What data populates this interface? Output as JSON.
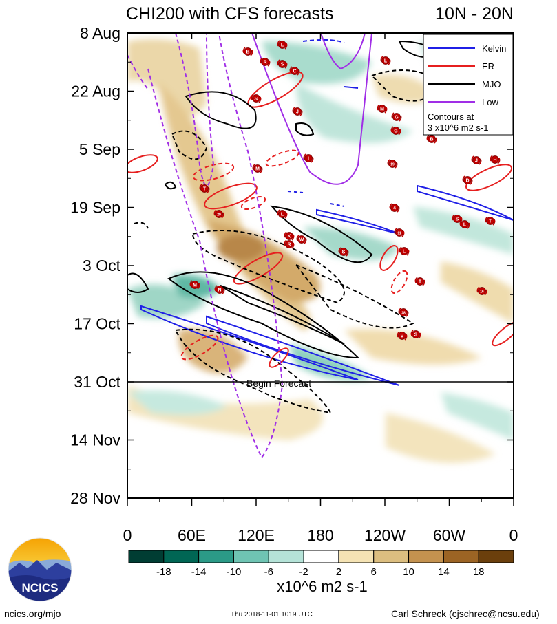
{
  "title_left": "CHI200 with CFS forecasts",
  "title_right": "10N - 20N",
  "y_axis": {
    "ticks": [
      "8 Aug",
      "22 Aug",
      "5 Sep",
      "19 Sep",
      "3 Oct",
      "17 Oct",
      "31 Oct",
      "14 Nov",
      "28 Nov"
    ]
  },
  "x_axis": {
    "ticks": [
      "0",
      "60E",
      "120E",
      "180",
      "120W",
      "60W",
      "0"
    ]
  },
  "forecast_label": "Begin Forecast",
  "legend": {
    "items": [
      {
        "label": "Kelvin",
        "color": "#1f1fe6"
      },
      {
        "label": "ER",
        "color": "#e61f1f"
      },
      {
        "label": "MJO",
        "color": "#000000"
      },
      {
        "label": "Low",
        "color": "#a02ee6"
      }
    ],
    "note_line1": "Contours at",
    "note_line2": "3 x10^6 m2 s-1"
  },
  "colorbar": {
    "labels": [
      "-18",
      "-14",
      "-10",
      "-6",
      "-2",
      "2",
      "6",
      "10",
      "14",
      "18"
    ],
    "colors": [
      "#003d33",
      "#006654",
      "#2b9a87",
      "#6fc4b3",
      "#b5e3d8",
      "#ffffff",
      "#f5e3b4",
      "#dcbe80",
      "#c4924f",
      "#9c6424",
      "#6b3f0c"
    ],
    "units": "x10^6 m2 s-1"
  },
  "footer": {
    "left": "ncics.org/mjo",
    "center": "Thu 2018-11-01 1019 UTC",
    "right": "Carl Schreck (cjschrec@ncsu.edu)"
  },
  "logo_text": "NCICS",
  "storm_labels": [
    "B",
    "L",
    "R",
    "S",
    "C",
    "24",
    "J",
    "L",
    "M",
    "G",
    "G",
    "B",
    "M",
    "I",
    "H",
    "J",
    "19",
    "D",
    "4",
    "T",
    "29",
    "L",
    "K",
    "W",
    "R",
    "S",
    "11",
    "L",
    "S",
    "L",
    "T",
    "M",
    "N",
    "T",
    "16",
    "28",
    "V",
    "S"
  ],
  "chart_data": {
    "type": "heatmap",
    "title": "CHI200 with CFS forecasts",
    "region": "10N - 20N",
    "x_label": "",
    "y_label": "",
    "x_range_deg": [
      0,
      360
    ],
    "y_range": [
      "8 Aug",
      "28 Nov"
    ],
    "forecast_start": "31 Oct",
    "contours_at": "3 x10^6 m2 s-1",
    "contour_series": [
      "Kelvin",
      "ER",
      "MJO",
      "Low"
    ],
    "colorbar_levels": [
      -18,
      -14,
      -10,
      -6,
      -2,
      2,
      6,
      10,
      14,
      18
    ]
  }
}
